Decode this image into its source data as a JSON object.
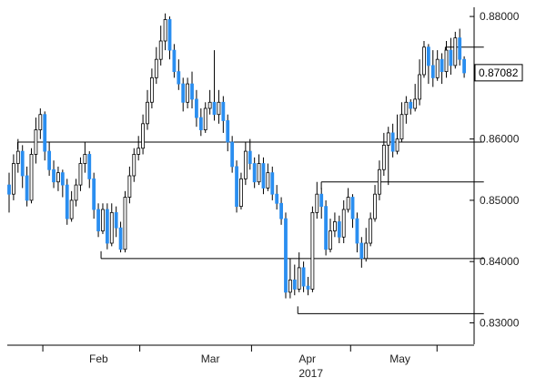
{
  "chart_data": {
    "type": "candlestick",
    "y_axis": {
      "min": 0.8265,
      "max": 0.8815,
      "ticks": [
        "0.83000",
        "0.84000",
        "0.85000",
        "0.86000",
        "0.88000"
      ],
      "tick_values": [
        0.83,
        0.84,
        0.85,
        0.86,
        0.88
      ]
    },
    "x_axis": {
      "months": [
        "Feb",
        "Mar",
        "Apr",
        "May"
      ],
      "month_tick_indices": [
        16,
        62,
        115,
        162,
        203
      ],
      "month_label_indices": [
        39,
        92,
        138,
        182
      ],
      "year_label": "2017",
      "year_label_index": 138
    },
    "last_price": {
      "label": "0.87082",
      "value": 0.87082
    },
    "colors": {
      "up": "#ffffff",
      "down": "#2a8ef0",
      "wick": "#000000",
      "axis": "#000000"
    },
    "levels": [
      {
        "value": 0.8595,
        "from_index": 4,
        "to_index": 222
      },
      {
        "value": 0.8405,
        "from_index": 43,
        "to_index": 222
      },
      {
        "value": 0.853,
        "from_index": 146,
        "to_index": 222
      },
      {
        "value": 0.8315,
        "from_index": 135,
        "to_index": 222
      },
      {
        "value": 0.875,
        "from_index": 204,
        "to_index": 222
      }
    ],
    "candles": [
      [
        0.8525,
        0.851,
        0.8545,
        0.848
      ],
      [
        0.851,
        0.856,
        0.8575,
        0.85
      ],
      [
        0.856,
        0.858,
        0.86,
        0.8545
      ],
      [
        0.858,
        0.854,
        0.859,
        0.852
      ],
      [
        0.854,
        0.85,
        0.8555,
        0.849
      ],
      [
        0.85,
        0.8575,
        0.8585,
        0.8495
      ],
      [
        0.8575,
        0.8615,
        0.8635,
        0.856
      ],
      [
        0.8615,
        0.864,
        0.865,
        0.86
      ],
      [
        0.864,
        0.858,
        0.8645,
        0.8565
      ],
      [
        0.858,
        0.855,
        0.8595,
        0.854
      ],
      [
        0.855,
        0.853,
        0.8565,
        0.852
      ],
      [
        0.853,
        0.8545,
        0.8555,
        0.8515
      ],
      [
        0.8545,
        0.8525,
        0.855,
        0.8505
      ],
      [
        0.8525,
        0.847,
        0.8535,
        0.846
      ],
      [
        0.847,
        0.85,
        0.8515,
        0.8465
      ],
      [
        0.85,
        0.8525,
        0.8535,
        0.849
      ],
      [
        0.8525,
        0.856,
        0.857,
        0.8515
      ],
      [
        0.856,
        0.8575,
        0.8595,
        0.8545
      ],
      [
        0.8575,
        0.8535,
        0.858,
        0.852
      ],
      [
        0.8535,
        0.8485,
        0.8545,
        0.847
      ],
      [
        0.8485,
        0.845,
        0.8495,
        0.844
      ],
      [
        0.845,
        0.8485,
        0.8495,
        0.8445
      ],
      [
        0.8485,
        0.843,
        0.8495,
        0.842
      ],
      [
        0.843,
        0.848,
        0.8495,
        0.8425
      ],
      [
        0.848,
        0.8455,
        0.849,
        0.844
      ],
      [
        0.8455,
        0.842,
        0.8465,
        0.8415
      ],
      [
        0.842,
        0.8505,
        0.8515,
        0.8415
      ],
      [
        0.8505,
        0.854,
        0.8555,
        0.8495
      ],
      [
        0.854,
        0.8575,
        0.8585,
        0.853
      ],
      [
        0.8575,
        0.8585,
        0.8605,
        0.8565
      ],
      [
        0.8585,
        0.8625,
        0.864,
        0.8575
      ],
      [
        0.8625,
        0.866,
        0.868,
        0.8615
      ],
      [
        0.866,
        0.87,
        0.8715,
        0.865
      ],
      [
        0.87,
        0.873,
        0.875,
        0.869
      ],
      [
        0.873,
        0.876,
        0.8785,
        0.872
      ],
      [
        0.876,
        0.8795,
        0.8805,
        0.8745
      ],
      [
        0.8795,
        0.8745,
        0.88,
        0.873
      ],
      [
        0.8745,
        0.871,
        0.8755,
        0.87
      ],
      [
        0.871,
        0.869,
        0.873,
        0.868
      ],
      [
        0.869,
        0.866,
        0.87,
        0.8645
      ],
      [
        0.866,
        0.869,
        0.87,
        0.865
      ],
      [
        0.869,
        0.8665,
        0.871,
        0.865
      ],
      [
        0.8665,
        0.8635,
        0.868,
        0.862
      ],
      [
        0.8635,
        0.8615,
        0.865,
        0.8605
      ],
      [
        0.8615,
        0.865,
        0.866,
        0.861
      ],
      [
        0.865,
        0.866,
        0.868,
        0.864
      ],
      [
        0.866,
        0.864,
        0.8745,
        0.863
      ],
      [
        0.864,
        0.866,
        0.868,
        0.8625
      ],
      [
        0.866,
        0.863,
        0.867,
        0.861
      ],
      [
        0.863,
        0.8595,
        0.864,
        0.858
      ],
      [
        0.8595,
        0.8555,
        0.8605,
        0.8545
      ],
      [
        0.8555,
        0.849,
        0.8565,
        0.848
      ],
      [
        0.849,
        0.8535,
        0.8545,
        0.8485
      ],
      [
        0.8535,
        0.858,
        0.8595,
        0.8525
      ],
      [
        0.858,
        0.856,
        0.86,
        0.855
      ],
      [
        0.856,
        0.853,
        0.857,
        0.852
      ],
      [
        0.853,
        0.856,
        0.8575,
        0.8525
      ],
      [
        0.856,
        0.852,
        0.857,
        0.851
      ],
      [
        0.852,
        0.8545,
        0.856,
        0.8515
      ],
      [
        0.8545,
        0.851,
        0.8555,
        0.85
      ],
      [
        0.851,
        0.8495,
        0.8525,
        0.8485
      ],
      [
        0.8495,
        0.847,
        0.8505,
        0.846
      ],
      [
        0.847,
        0.835,
        0.848,
        0.834
      ],
      [
        0.835,
        0.837,
        0.8405,
        0.834
      ],
      [
        0.837,
        0.8355,
        0.8395,
        0.8345
      ],
      [
        0.8355,
        0.839,
        0.8415,
        0.835
      ],
      [
        0.839,
        0.836,
        0.84,
        0.835
      ],
      [
        0.836,
        0.8355,
        0.8375,
        0.8345
      ],
      [
        0.8355,
        0.848,
        0.849,
        0.835
      ],
      [
        0.848,
        0.851,
        0.853,
        0.847
      ],
      [
        0.851,
        0.849,
        0.852,
        0.847
      ],
      [
        0.849,
        0.842,
        0.85,
        0.841
      ],
      [
        0.842,
        0.845,
        0.847,
        0.8415
      ],
      [
        0.845,
        0.8465,
        0.848,
        0.844
      ],
      [
        0.8465,
        0.844,
        0.8475,
        0.843
      ],
      [
        0.844,
        0.8485,
        0.85,
        0.843
      ],
      [
        0.8485,
        0.8505,
        0.852,
        0.848
      ],
      [
        0.8505,
        0.847,
        0.851,
        0.8455
      ],
      [
        0.847,
        0.843,
        0.848,
        0.8415
      ],
      [
        0.843,
        0.8405,
        0.844,
        0.839
      ],
      [
        0.8405,
        0.843,
        0.8455,
        0.84
      ],
      [
        0.843,
        0.847,
        0.848,
        0.8425
      ],
      [
        0.847,
        0.851,
        0.8525,
        0.8465
      ],
      [
        0.851,
        0.855,
        0.8565,
        0.85
      ],
      [
        0.855,
        0.859,
        0.861,
        0.854
      ],
      [
        0.859,
        0.861,
        0.862,
        0.8525
      ],
      [
        0.861,
        0.858,
        0.8625,
        0.857
      ],
      [
        0.858,
        0.86,
        0.864,
        0.8575
      ],
      [
        0.86,
        0.864,
        0.866,
        0.8595
      ],
      [
        0.864,
        0.866,
        0.867,
        0.8625
      ],
      [
        0.866,
        0.865,
        0.8665,
        0.864
      ],
      [
        0.865,
        0.8665,
        0.869,
        0.8645
      ],
      [
        0.8665,
        0.8705,
        0.873,
        0.8655
      ],
      [
        0.8705,
        0.875,
        0.876,
        0.87
      ],
      [
        0.875,
        0.872,
        0.8755,
        0.869
      ],
      [
        0.872,
        0.87,
        0.8745,
        0.8685
      ],
      [
        0.87,
        0.873,
        0.8745,
        0.8695
      ],
      [
        0.873,
        0.871,
        0.874,
        0.869
      ],
      [
        0.871,
        0.8745,
        0.876,
        0.87
      ],
      [
        0.8745,
        0.872,
        0.8765,
        0.8705
      ],
      [
        0.872,
        0.8765,
        0.8775,
        0.8715
      ],
      [
        0.8765,
        0.873,
        0.878,
        0.872
      ],
      [
        0.873,
        0.8708,
        0.8735,
        0.87
      ]
    ]
  }
}
